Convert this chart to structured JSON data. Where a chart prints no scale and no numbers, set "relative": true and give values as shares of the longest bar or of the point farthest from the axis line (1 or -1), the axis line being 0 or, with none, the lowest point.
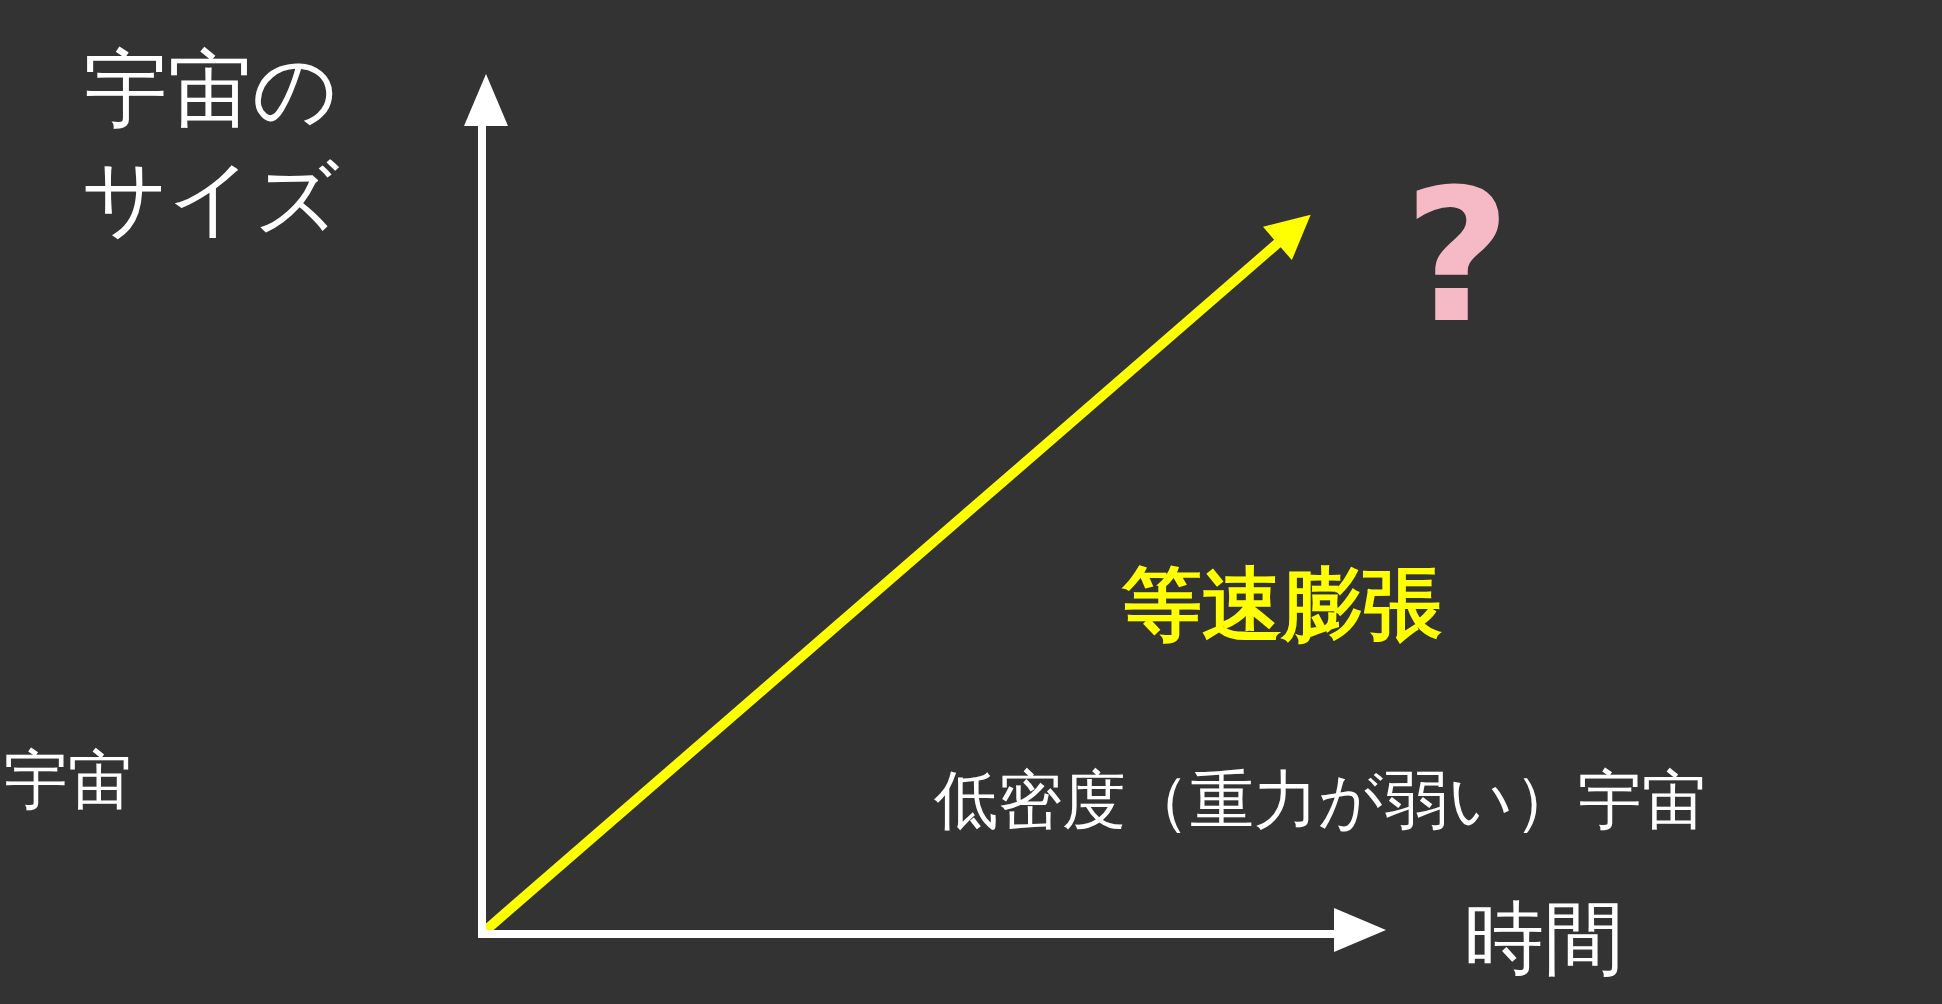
{
  "chart_data": {
    "type": "line",
    "relative": true,
    "categories": [
      null,
      null
    ],
    "series": [
      {
        "color": "#ffff00",
        "values": [
          0,
          1
        ]
      }
    ],
    "xlabel": "時間",
    "ylabel": "宇宙のサイズ",
    "annotations": [
      "等速膨張",
      "低密度（重力が弱い）宇宙",
      "?",
      "宇宙"
    ],
    "grid": false,
    "legend": false
  }
}
